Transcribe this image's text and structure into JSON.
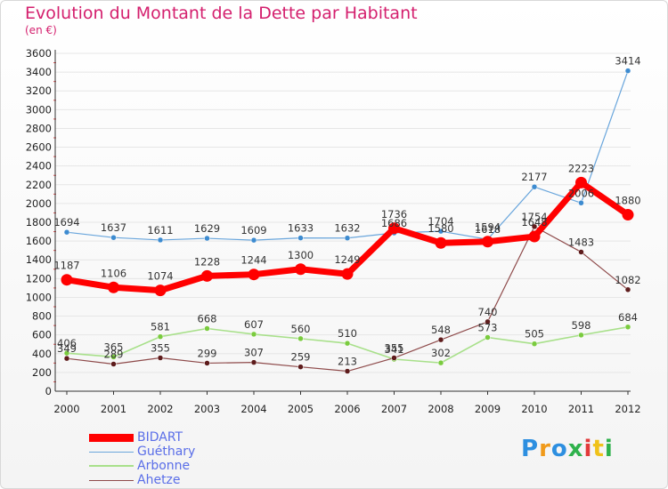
{
  "header": {
    "title": "Evolution du Montant de la Dette par Habitant",
    "subtitle": "(en €)"
  },
  "colors": {
    "title": "#d4206e",
    "axis_text": "#222222",
    "grid": "#e6e6e6",
    "legend_text": "#5a6ee8"
  },
  "logo": {
    "letters": [
      "P",
      "r",
      "o",
      "x",
      "i",
      "t",
      "i"
    ],
    "colors": [
      "#2d8fe0",
      "#f09a1a",
      "#2d8fe0",
      "#2fb24c",
      "#e23a3a",
      "#f0c21a",
      "#2fb24c"
    ]
  },
  "chart_data": {
    "type": "line",
    "title": "Evolution du Montant de la Dette par Habitant",
    "subtitle": "(en €)",
    "xlabel": "",
    "ylabel": "",
    "x": [
      "2000",
      "2001",
      "2002",
      "2003",
      "2004",
      "2005",
      "2006",
      "2007",
      "2008",
      "2009",
      "2010",
      "2011",
      "2012"
    ],
    "ylim": [
      0,
      3600
    ],
    "yticks": [
      0,
      200,
      400,
      600,
      800,
      1000,
      1200,
      1400,
      1600,
      1800,
      2000,
      2200,
      2400,
      2600,
      2800,
      3000,
      3200,
      3400,
      3600
    ],
    "grid": "horizontal",
    "legend_position": "bottom-left",
    "series": [
      {
        "name": "Guéthary",
        "color": "#6aa6dc",
        "point_color": "#3d8bd0",
        "values": [
          1694,
          1637,
          1611,
          1629,
          1609,
          1633,
          1632,
          1686,
          1704,
          1618,
          2177,
          2006,
          3414
        ],
        "labels": [
          "1694",
          "1637",
          "1611",
          "1629",
          "1609",
          "1633",
          "1632",
          "1686",
          "1704",
          "1618",
          "2177",
          "2006",
          "3414"
        ]
      },
      {
        "name": "Arbonne",
        "color": "#a8e08a",
        "point_color": "#7acb3e",
        "values": [
          406,
          365,
          581,
          668,
          607,
          560,
          510,
          341,
          302,
          573,
          505,
          598,
          684
        ],
        "labels": [
          "406",
          "365",
          "581",
          "668",
          "607",
          "560",
          "510",
          "341",
          "302",
          "573",
          "505",
          "598",
          "684"
        ]
      },
      {
        "name": "Ahetze",
        "color": "#8e4a4a",
        "point_color": "#5e1c1c",
        "values": [
          349,
          289,
          355,
          299,
          307,
          259,
          213,
          355,
          548,
          740,
          1754,
          1483,
          1082
        ],
        "labels": [
          "349",
          "289",
          "355",
          "299",
          "307",
          "259",
          "213",
          "355",
          "548",
          "740",
          "1754",
          "1483",
          "1082"
        ]
      },
      {
        "name": "BIDART",
        "color": "#ff0000",
        "point_color": "#ff0000",
        "values": [
          1187,
          1106,
          1074,
          1228,
          1244,
          1300,
          1249,
          1736,
          1580,
          1594,
          1648,
          2223,
          1880
        ],
        "labels": [
          "1187",
          "1106",
          "1074",
          "1228",
          "1244",
          "1300",
          "1249",
          "1736",
          "1580",
          "1594",
          "1648",
          "2223",
          "1880"
        ]
      }
    ],
    "legend": [
      {
        "name": "BIDART",
        "color": "#ff0000"
      },
      {
        "name": "Guéthary",
        "color": "#6aa6dc"
      },
      {
        "name": "Arbonne",
        "color": "#a8e08a"
      },
      {
        "name": "Ahetze",
        "color": "#8e4a4a"
      }
    ]
  }
}
